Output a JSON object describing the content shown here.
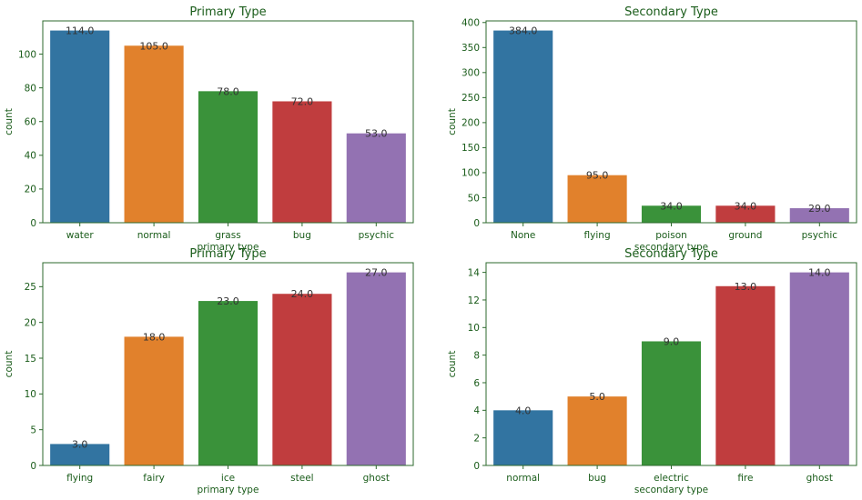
{
  "colors": {
    "text": "#1a5c1a",
    "frame": "#2d6a2d",
    "label": "#333333",
    "bars": [
      "#3274a1",
      "#e1812c",
      "#3a923a",
      "#c03d3e",
      "#9372b2"
    ]
  },
  "chart_data": [
    {
      "type": "bar",
      "title": "Primary Type",
      "xlabel": "primary type",
      "ylabel": "count",
      "categories": [
        "water",
        "normal",
        "grass",
        "bug",
        "psychic"
      ],
      "values": [
        114,
        105,
        78,
        72,
        53
      ],
      "value_labels": [
        "114.0",
        "105.0",
        "78.0",
        "72.0",
        "53.0"
      ],
      "ylim": [
        0,
        119.7
      ],
      "yticks": [
        0,
        20,
        40,
        60,
        80,
        100
      ],
      "grid": false
    },
    {
      "type": "bar",
      "title": "Secondary Type",
      "xlabel": "secondary type",
      "ylabel": "count",
      "categories": [
        "None",
        "flying",
        "poison",
        "ground",
        "psychic"
      ],
      "values": [
        384,
        95,
        34,
        34,
        29
      ],
      "value_labels": [
        "384.0",
        "95.0",
        "34.0",
        "34.0",
        "29.0"
      ],
      "ylim": [
        0,
        403.2
      ],
      "yticks": [
        0,
        50,
        100,
        150,
        200,
        250,
        300,
        350,
        400
      ],
      "grid": false
    },
    {
      "type": "bar",
      "title": "Primary Type",
      "xlabel": "primary type",
      "ylabel": "count",
      "categories": [
        "flying",
        "fairy",
        "ice",
        "steel",
        "ghost"
      ],
      "values": [
        3,
        18,
        23,
        24,
        27
      ],
      "value_labels": [
        "3.0",
        "18.0",
        "23.0",
        "24.0",
        "27.0"
      ],
      "ylim": [
        0,
        28.35
      ],
      "yticks": [
        0,
        5,
        10,
        15,
        20,
        25
      ],
      "grid": false
    },
    {
      "type": "bar",
      "title": "Secondary Type",
      "xlabel": "secondary type",
      "ylabel": "count",
      "categories": [
        "normal",
        "bug",
        "electric",
        "fire",
        "ghost"
      ],
      "values": [
        4,
        5,
        9,
        13,
        14
      ],
      "value_labels": [
        "4.0",
        "5.0",
        "9.0",
        "13.0",
        "14.0"
      ],
      "ylim": [
        0,
        14.7
      ],
      "yticks": [
        0,
        2,
        4,
        6,
        8,
        10,
        12,
        14
      ],
      "grid": false
    }
  ]
}
